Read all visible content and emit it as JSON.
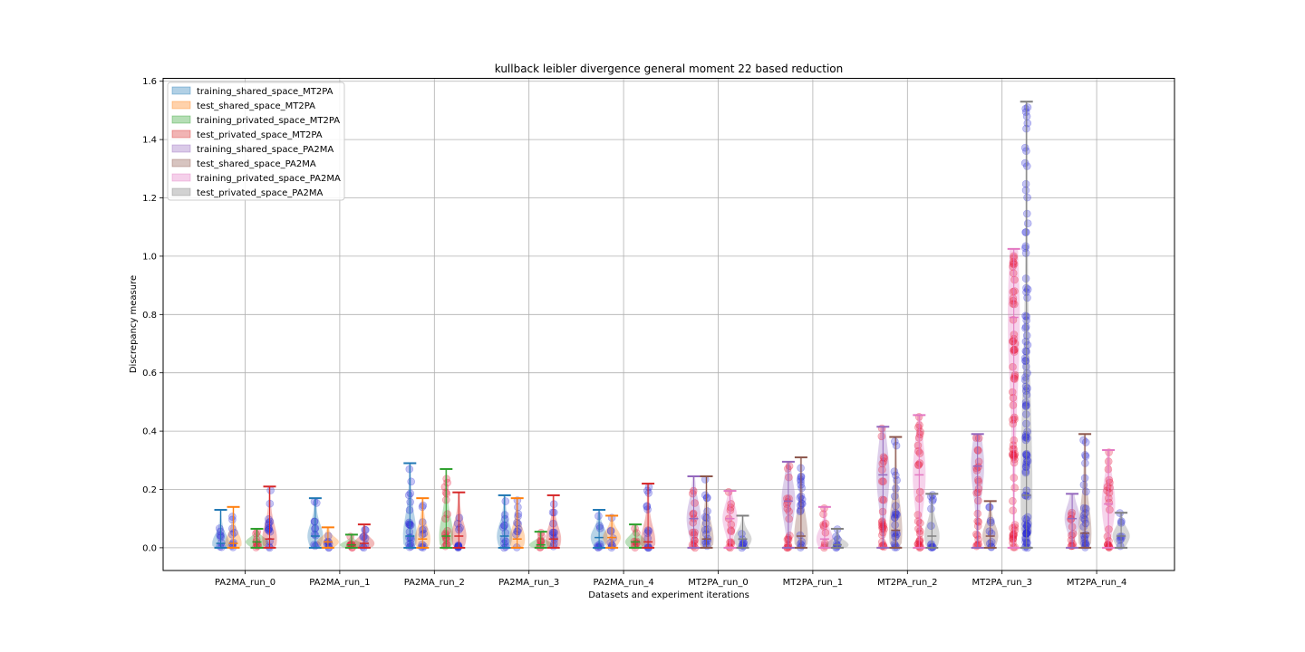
{
  "chart_data": {
    "type": "violin",
    "title": "kullback leibler divergence general moment 22 based reduction",
    "xlabel": "Datasets and experiment iterations",
    "ylabel": "Discrepancy measure",
    "ylim": [
      -0.078,
      1.61
    ],
    "yticks": [
      0.0,
      0.2,
      0.4,
      0.6,
      0.8,
      1.0,
      1.2,
      1.4,
      1.6
    ],
    "ytick_labels": [
      "0.0",
      "0.2",
      "0.4",
      "0.6",
      "0.8",
      "1.0",
      "1.2",
      "1.4",
      "1.6"
    ],
    "grid": true,
    "legend_position": "upper left",
    "categories": [
      "PA2MA_run_0",
      "PA2MA_run_1",
      "PA2MA_run_2",
      "PA2MA_run_3",
      "PA2MA_run_4",
      "MT2PA_run_0",
      "MT2PA_run_1",
      "MT2PA_run_2",
      "MT2PA_run_3",
      "MT2PA_run_4"
    ],
    "series": [
      {
        "name": "training_shared_space_MT2PA",
        "color": "#1f77b4",
        "points_color": "#2c2cd8",
        "max": [
          0.13,
          0.17,
          0.29,
          0.18,
          0.13,
          null,
          null,
          null,
          null,
          null
        ],
        "median": [
          0.015,
          0.04,
          0.04,
          0.04,
          0.035,
          null,
          null,
          null,
          null,
          null
        ]
      },
      {
        "name": "test_shared_space_MT2PA",
        "color": "#ff7f0e",
        "points_color": "#2c2cd8",
        "max": [
          0.14,
          0.07,
          0.17,
          0.17,
          0.11,
          null,
          null,
          null,
          null,
          null
        ],
        "median": [
          0.015,
          0.02,
          0.03,
          0.03,
          0.035,
          null,
          null,
          null,
          null,
          null
        ]
      },
      {
        "name": "training_privated_space_MT2PA",
        "color": "#2ca02c",
        "points_color": "#e8173a",
        "max": [
          0.065,
          0.045,
          0.27,
          0.055,
          0.08,
          null,
          null,
          null,
          null,
          null
        ],
        "median": [
          0.02,
          0.01,
          0.04,
          0.01,
          0.02,
          null,
          null,
          null,
          null,
          null
        ]
      },
      {
        "name": "test_privated_space_MT2PA",
        "color": "#d62728",
        "points_color": "#2c2cd8",
        "max": [
          0.21,
          0.08,
          0.19,
          0.18,
          0.22,
          null,
          null,
          null,
          null,
          null
        ],
        "median": [
          0.03,
          0.015,
          0.04,
          0.03,
          0.02,
          null,
          null,
          null,
          null,
          null
        ]
      },
      {
        "name": "training_shared_space_PA2MA",
        "color": "#9467bd",
        "points_color": "#e8173a",
        "max": [
          null,
          null,
          null,
          null,
          null,
          0.245,
          0.295,
          0.415,
          0.39,
          0.185
        ],
        "median": [
          null,
          null,
          null,
          null,
          null,
          0.1,
          0.16,
          0.25,
          0.28,
          0.1
        ]
      },
      {
        "name": "test_shared_space_PA2MA",
        "color": "#8c564b",
        "points_color": "#2c2cd8",
        "max": [
          null,
          null,
          null,
          null,
          null,
          0.245,
          0.31,
          0.38,
          0.16,
          0.39
        ],
        "median": [
          null,
          null,
          null,
          null,
          null,
          0.03,
          0.04,
          0.06,
          0.04,
          0.05
        ]
      },
      {
        "name": "training_privated_space_PA2MA",
        "color": "#e377c2",
        "points_color": "#e8173a",
        "max": [
          null,
          null,
          null,
          null,
          null,
          0.195,
          0.14,
          0.455,
          1.025,
          0.335
        ],
        "median": [
          null,
          null,
          null,
          null,
          null,
          0.1,
          0.03,
          0.25,
          0.79,
          0.15
        ]
      },
      {
        "name": "test_privated_space_PA2MA",
        "color": "#7f7f7f",
        "points_color": "#2c2cd8",
        "max": [
          null,
          null,
          null,
          null,
          null,
          0.11,
          0.065,
          0.185,
          1.53,
          0.12
        ],
        "median": [
          null,
          null,
          null,
          null,
          null,
          0.03,
          0.01,
          0.04,
          0.18,
          0.04
        ]
      }
    ]
  }
}
